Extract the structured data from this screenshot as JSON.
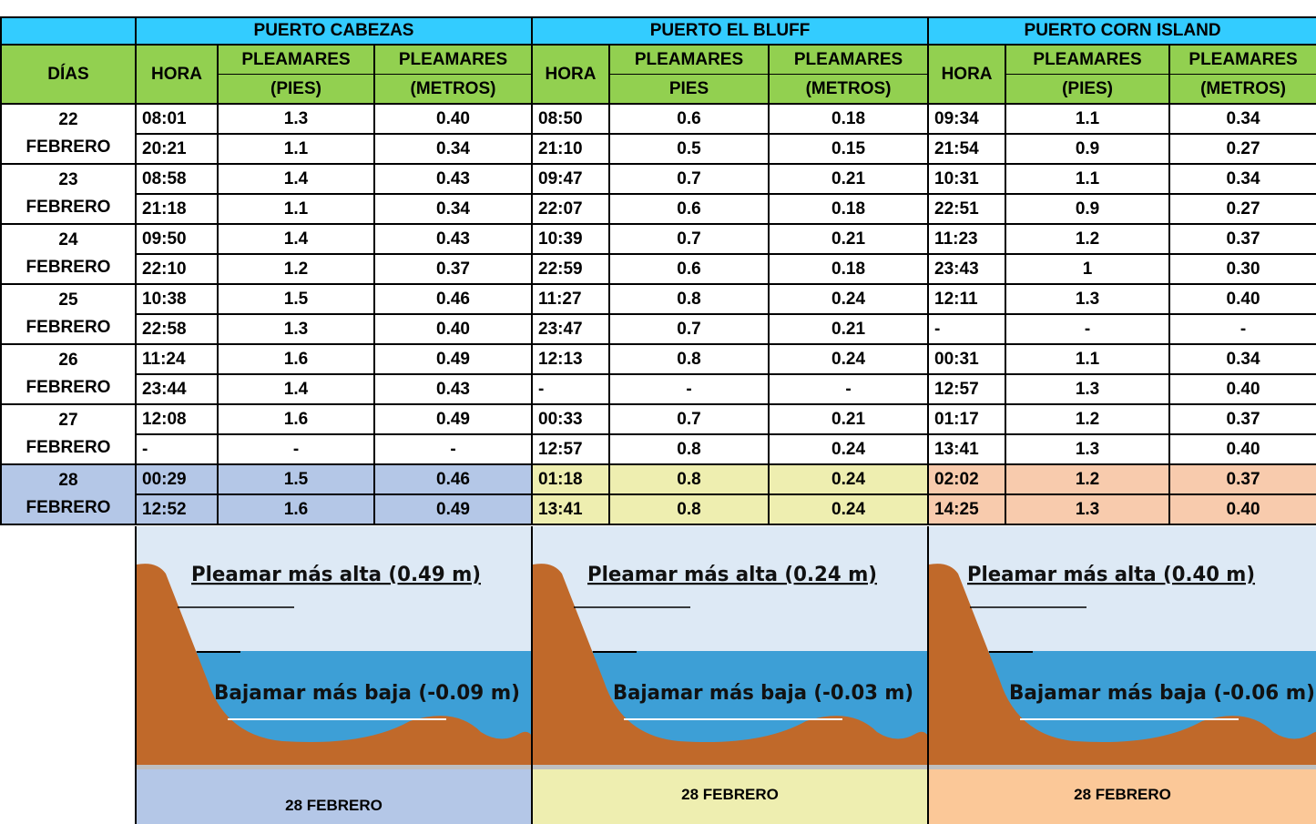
{
  "table": {
    "days_header": "DÍAS",
    "ports": [
      {
        "name": "PUERTO CABEZAS",
        "hora": "HORA",
        "col2": [
          "PLEAMARES",
          "(PIES)"
        ],
        "col3": [
          "PLEAMARES",
          "(METROS)"
        ]
      },
      {
        "name": "PUERTO EL BLUFF",
        "hora": "HORA",
        "col2": [
          "PLEAMARES",
          "PIES"
        ],
        "col3": [
          "PLEAMARES",
          "(METROS)"
        ]
      },
      {
        "name": "PUERTO CORN ISLAND",
        "hora": "HORA",
        "col2": [
          "PLEAMARES",
          "(PIES)"
        ],
        "col3": [
          "PLEAMARES",
          "(METROS)"
        ]
      }
    ],
    "days": [
      {
        "number": "22",
        "month": "FEBRERO",
        "rows": [
          [
            "08:01",
            "1.3",
            "0.40",
            "08:50",
            "0.6",
            "0.18",
            "09:34",
            "1.1",
            "0.34"
          ],
          [
            "20:21",
            "1.1",
            "0.34",
            "21:10",
            "0.5",
            "0.15",
            "21:54",
            "0.9",
            "0.27"
          ]
        ]
      },
      {
        "number": "23",
        "month": "FEBRERO",
        "rows": [
          [
            "08:58",
            "1.4",
            "0.43",
            "09:47",
            "0.7",
            "0.21",
            "10:31",
            "1.1",
            "0.34"
          ],
          [
            "21:18",
            "1.1",
            "0.34",
            "22:07",
            "0.6",
            "0.18",
            "22:51",
            "0.9",
            "0.27"
          ]
        ]
      },
      {
        "number": "24",
        "month": "FEBRERO",
        "rows": [
          [
            "09:50",
            "1.4",
            "0.43",
            "10:39",
            "0.7",
            "0.21",
            "11:23",
            "1.2",
            "0.37"
          ],
          [
            "22:10",
            "1.2",
            "0.37",
            "22:59",
            "0.6",
            "0.18",
            "23:43",
            "1",
            "0.30"
          ]
        ]
      },
      {
        "number": "25",
        "month": "FEBRERO",
        "rows": [
          [
            "10:38",
            "1.5",
            "0.46",
            "11:27",
            "0.8",
            "0.24",
            "12:11",
            "1.3",
            "0.40"
          ],
          [
            "22:58",
            "1.3",
            "0.40",
            "23:47",
            "0.7",
            "0.21",
            "-",
            "-",
            "-"
          ]
        ]
      },
      {
        "number": "26",
        "month": "FEBRERO",
        "rows": [
          [
            "11:24",
            "1.6",
            "0.49",
            "12:13",
            "0.8",
            "0.24",
            "00:31",
            "1.1",
            "0.34"
          ],
          [
            "23:44",
            "1.4",
            "0.43",
            "-",
            "-",
            "-",
            "12:57",
            "1.3",
            "0.40"
          ]
        ]
      },
      {
        "number": "27",
        "month": "FEBRERO",
        "rows": [
          [
            "12:08",
            "1.6",
            "0.49",
            "00:33",
            "0.7",
            "0.21",
            "01:17",
            "1.2",
            "0.37"
          ],
          [
            "-",
            "-",
            "-",
            "12:57",
            "0.8",
            "0.24",
            "13:41",
            "1.3",
            "0.40"
          ]
        ]
      },
      {
        "number": "28",
        "month": "FEBRERO",
        "rows": [
          [
            "00:29",
            "1.5",
            "0.46",
            "01:18",
            "0.8",
            "0.24",
            "02:02",
            "1.2",
            "0.37"
          ],
          [
            "12:52",
            "1.6",
            "0.49",
            "13:41",
            "0.8",
            "0.24",
            "14:25",
            "1.3",
            "0.40"
          ]
        ]
      }
    ]
  },
  "panels": [
    {
      "high": "Pleamar más alta (0.49 m)",
      "low": "Bajamar más baja (-0.09 m)",
      "date": "28 FEBRERO"
    },
    {
      "high": "Pleamar más alta (0.24 m)",
      "low": "Bajamar más baja (-0.03 m)",
      "date": "28 FEBRERO"
    },
    {
      "high": "Pleamar más alta (0.40 m)",
      "low": "Bajamar más baja (-0.06 m)",
      "date": "28 FEBRERO"
    }
  ]
}
